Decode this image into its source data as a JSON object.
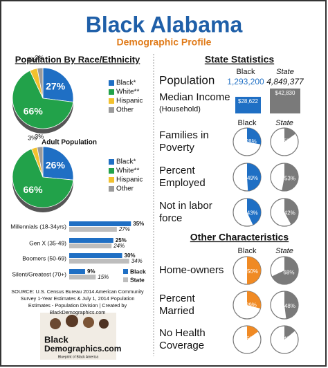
{
  "header": {
    "title": "Black Alabama",
    "subtitle": "Demographic Profile"
  },
  "race": {
    "title": "Population By Race/Ethnicity",
    "categories": [
      "Black*",
      "White**",
      "Hispanic",
      "Other"
    ],
    "colors": [
      "#1f6fc4",
      "#22a24a",
      "#f2c12e",
      "#9a9a9a"
    ],
    "total": {
      "values": [
        27,
        66,
        4,
        3
      ],
      "value_labels": [
        "27%",
        "66%",
        "4%",
        "3%"
      ]
    },
    "adult": {
      "title": "Adult Population",
      "values": [
        26,
        66,
        3,
        3
      ],
      "value_labels": [
        "26%",
        "66%",
        "3%",
        "3%"
      ]
    }
  },
  "generations": {
    "categories": [
      "Millennials (18-34yrs)",
      "Gen X (35-49)",
      "Boomers (50-69)",
      "Silent/Greatest (70+)"
    ],
    "series": [
      {
        "name": "Black",
        "color": "#1f6fc4",
        "values": [
          35,
          25,
          30,
          9
        ],
        "value_labels": [
          "35%",
          "25%",
          "30%",
          "9%"
        ]
      },
      {
        "name": "State",
        "color": "#bdbdbd",
        "values": [
          27,
          24,
          34,
          15
        ],
        "value_labels": [
          "27%",
          "24%",
          "34%",
          "15%"
        ]
      }
    ]
  },
  "source": "SOURCE: U.S. Census Bureau 2014 American Community Survey 1-Year Estimates & July 1, 2014 Population Estimates - Population Division | Created by BlackDemographics.com",
  "logo": {
    "line1": "Black",
    "line2": "Demographics.com",
    "tagline": "Blueprint of Black America"
  },
  "state": {
    "title": "State Statistics",
    "columns": [
      "Black",
      "State"
    ],
    "colors": [
      "#1f6fc4",
      "#7a7a7a"
    ],
    "population": {
      "label": "Population",
      "values": [
        "1,293,200",
        "4,849,377"
      ]
    },
    "income": {
      "label": "Median Income",
      "sublabel": "(Household)",
      "values": [
        28622,
        42830
      ],
      "value_labels": [
        "$28,622",
        "$42,830"
      ]
    },
    "rows": [
      {
        "label": [
          "Families in",
          "Poverty"
        ],
        "values": [
          28,
          15
        ],
        "value_labels": [
          "28%",
          "15%"
        ]
      },
      {
        "label": [
          "Percent",
          "Employed"
        ],
        "values": [
          49,
          53
        ],
        "value_labels": [
          "49%",
          "53%"
        ]
      },
      {
        "label": [
          "Not in labor",
          "force"
        ],
        "values": [
          43,
          42
        ],
        "value_labels": [
          "43%",
          "42%"
        ]
      }
    ]
  },
  "other": {
    "title": "Other Characteristics",
    "columns": [
      "Black",
      "State"
    ],
    "colors": [
      "#f08a24",
      "#7a7a7a"
    ],
    "rows": [
      {
        "label": [
          "Home-owners"
        ],
        "values": [
          50,
          68
        ],
        "value_labels": [
          "50%",
          "68%"
        ]
      },
      {
        "label": [
          "Percent",
          "Married"
        ],
        "values": [
          29,
          48
        ],
        "value_labels": [
          "29%",
          "48%"
        ]
      },
      {
        "label": [
          "No Health",
          "Coverage"
        ],
        "values": [
          15,
          14
        ],
        "value_labels": [
          "15%",
          "14%"
        ]
      }
    ]
  }
}
